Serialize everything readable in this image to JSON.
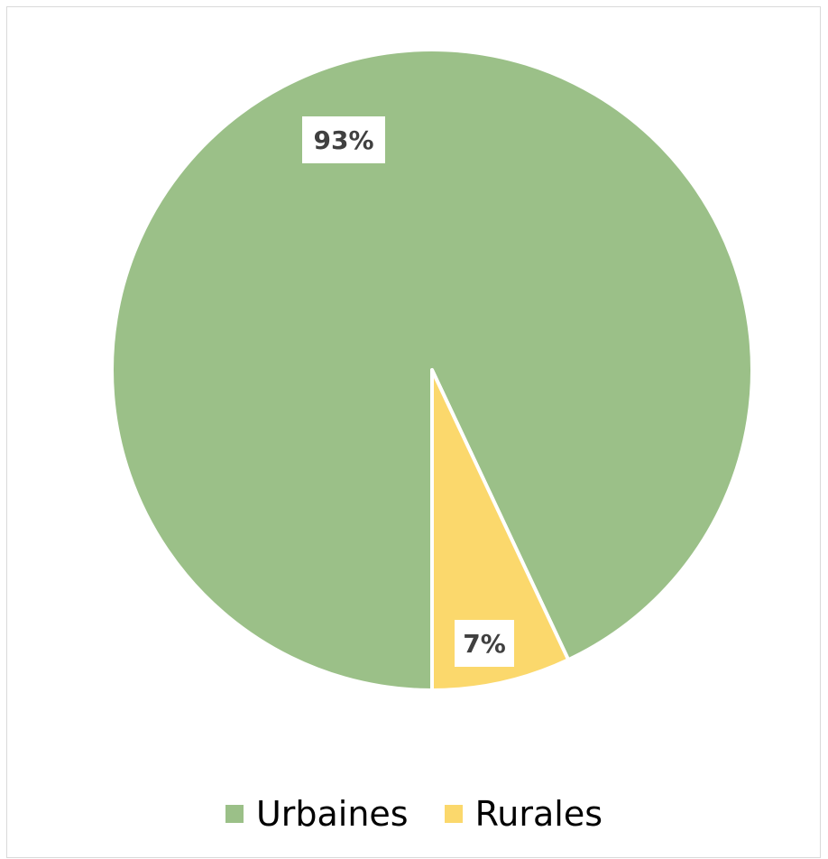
{
  "chart_data": {
    "type": "pie",
    "categories": [
      "Urbaines",
      "Rurales"
    ],
    "values": [
      93,
      7
    ],
    "data_labels": [
      "93%",
      "7%"
    ],
    "colors": [
      "#9BC088",
      "#FBD86C"
    ],
    "legend_position": "bottom",
    "start_angle_clockwise_from_top": 0,
    "title": ""
  }
}
